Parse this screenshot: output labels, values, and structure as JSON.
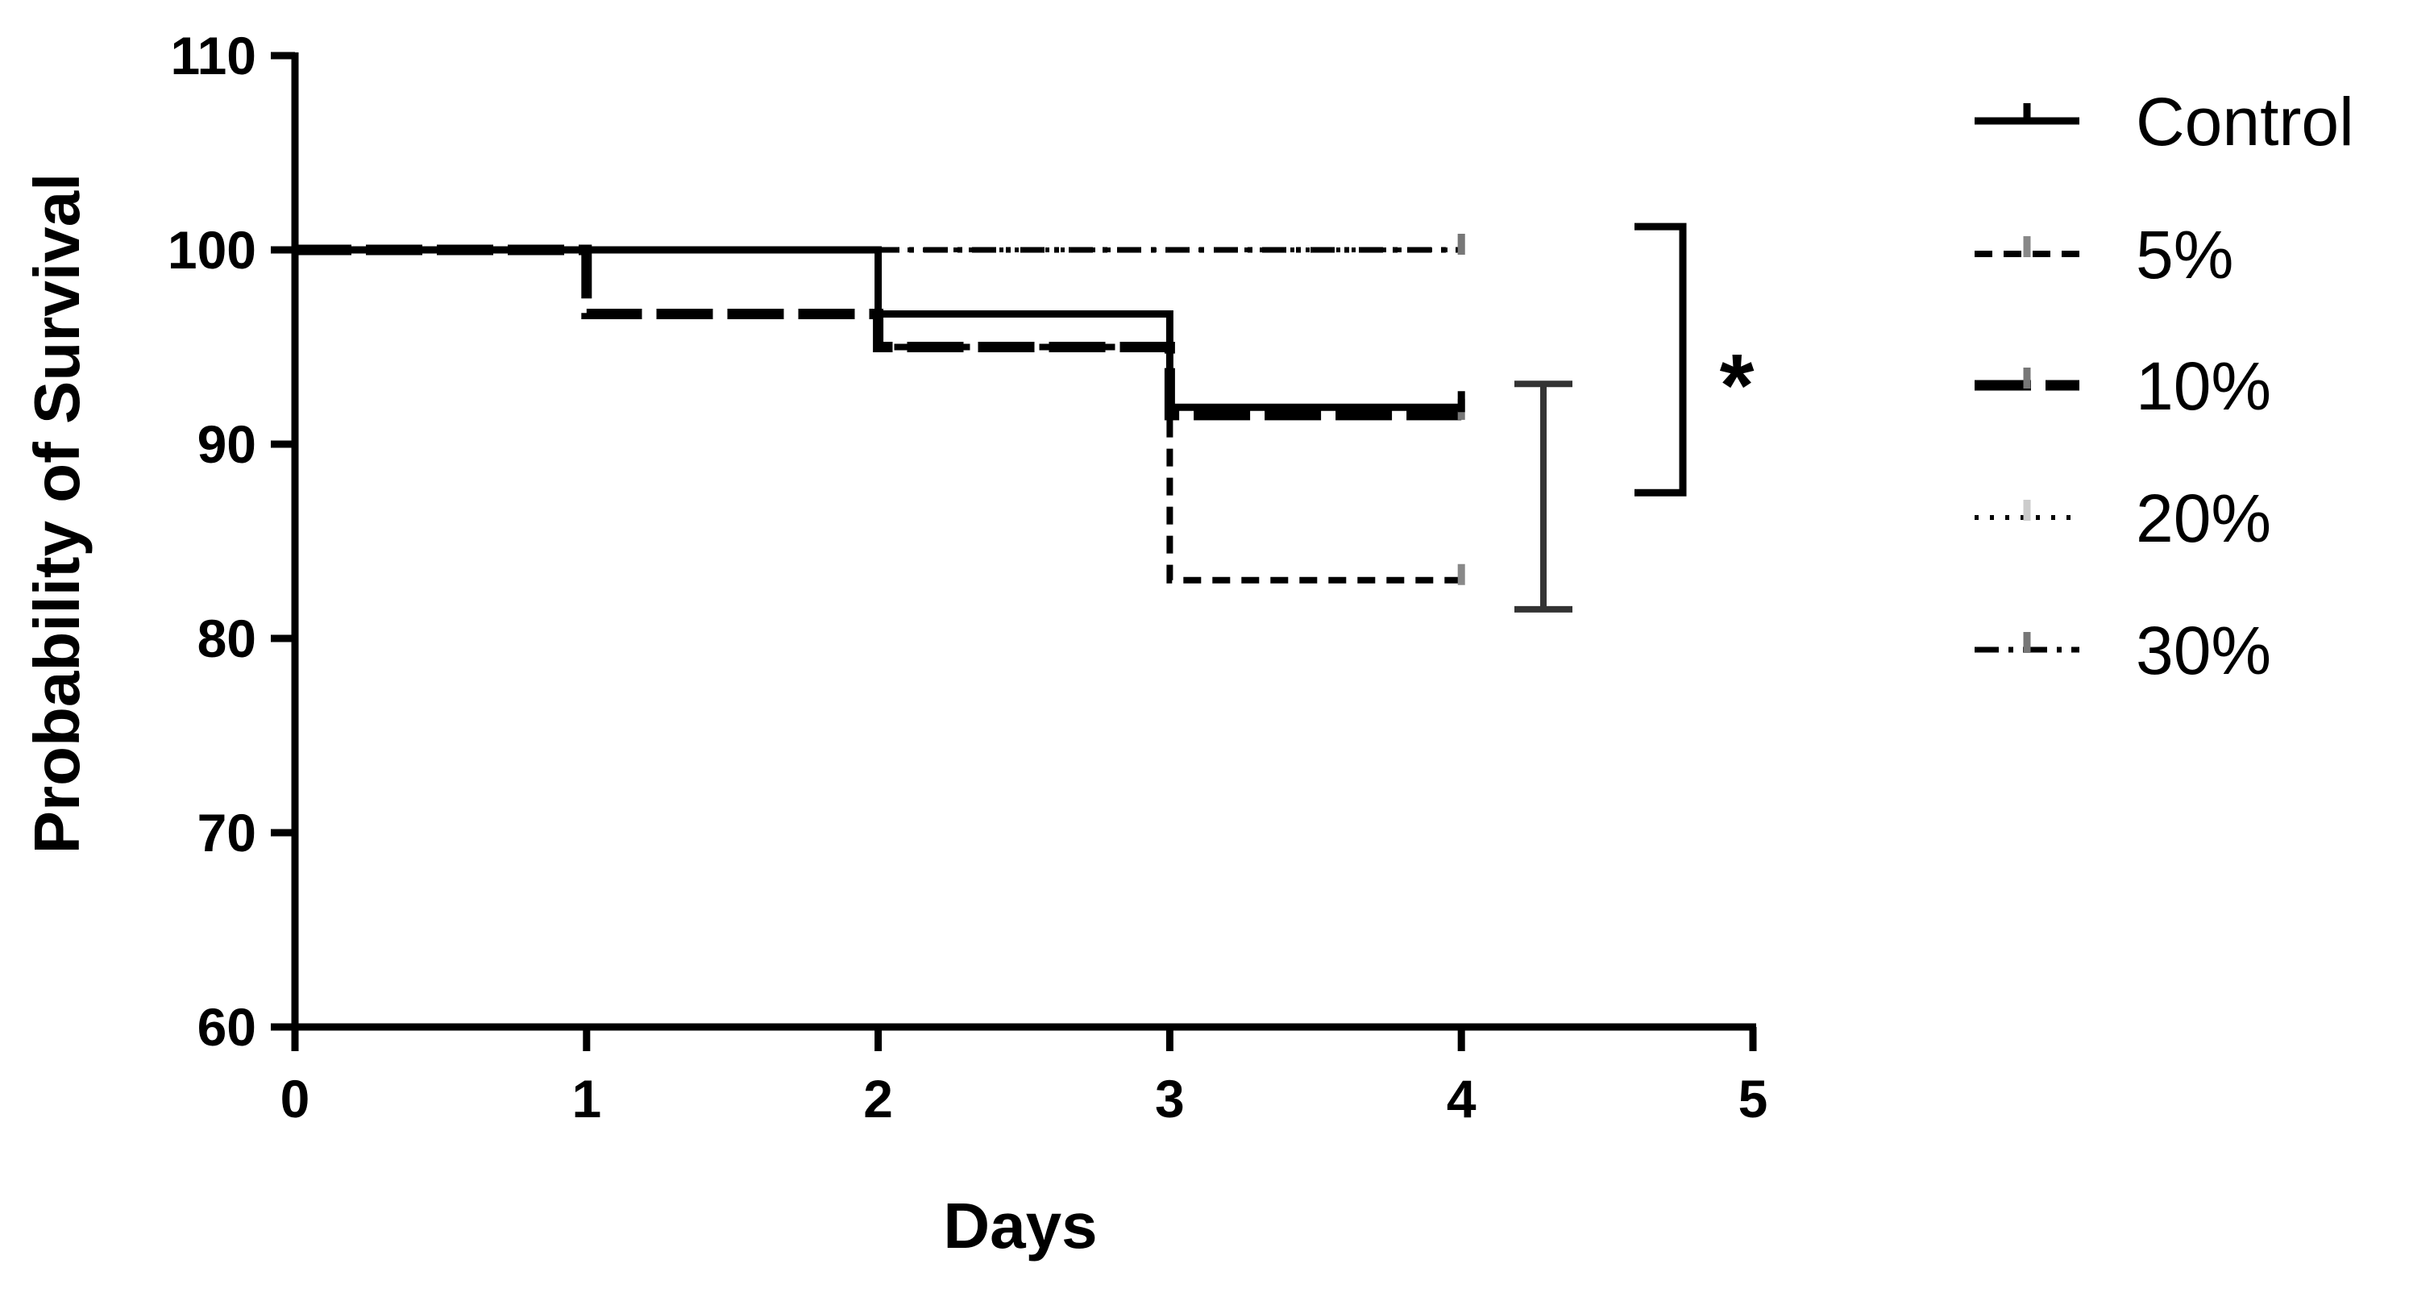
{
  "chart_data": {
    "type": "line",
    "subtype": "step",
    "xlabel": "Days",
    "ylabel": "Probability of Survival",
    "xlim": [
      0,
      5
    ],
    "ylim": [
      60,
      110
    ],
    "xticks": [
      "0",
      "1",
      "2",
      "3",
      "4",
      "5"
    ],
    "yticks": [
      "60",
      "70",
      "80",
      "90",
      "100",
      "110"
    ],
    "grid": false,
    "legend_position": "right",
    "series": [
      {
        "name": "Control",
        "style": "solid",
        "color": "#000000",
        "x": [
          0,
          2,
          2,
          3,
          3,
          4
        ],
        "y": [
          100,
          100,
          96.7,
          96.7,
          91.9,
          91.9
        ]
      },
      {
        "name": "5%",
        "style": "dashed",
        "color": "#000000",
        "x": [
          0,
          2,
          2,
          3,
          3,
          4
        ],
        "y": [
          100,
          100,
          95,
          95,
          83,
          83
        ]
      },
      {
        "name": "10%",
        "style": "long-dash",
        "color": "#000000",
        "x": [
          0,
          1,
          1,
          2,
          2,
          3,
          3,
          4
        ],
        "y": [
          100,
          100,
          96.7,
          96.7,
          95,
          95,
          91.5,
          91.5
        ]
      },
      {
        "name": "20%",
        "style": "dotted",
        "color": "#000000",
        "x": [
          0,
          4
        ],
        "y": [
          100,
          100
        ]
      },
      {
        "name": "30%",
        "style": "dash-dot",
        "color": "#000000",
        "x": [
          0,
          4
        ],
        "y": [
          100,
          100
        ]
      }
    ],
    "annotations": [
      {
        "type": "bracket",
        "y_range": [
          87.5,
          101.2
        ],
        "label": "*"
      },
      {
        "type": "error-bar",
        "y_range": [
          81.5,
          93.1
        ]
      }
    ]
  }
}
